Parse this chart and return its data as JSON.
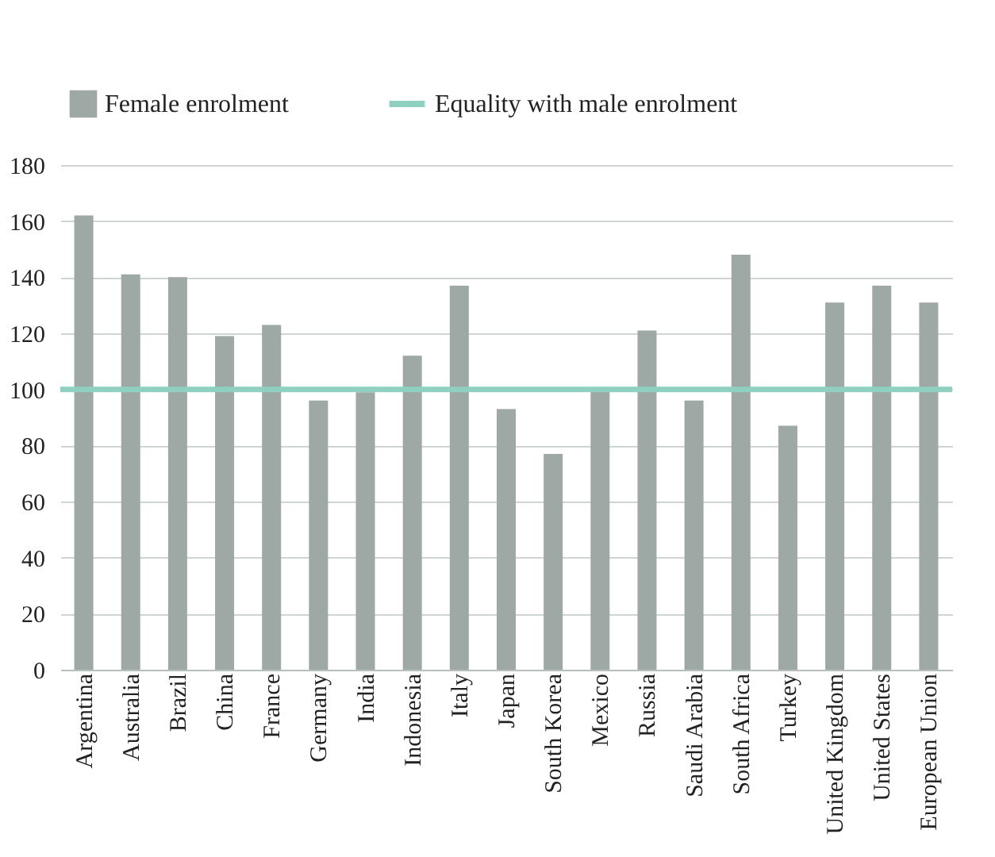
{
  "chart_data": {
    "type": "bar",
    "categories": [
      "Argentina",
      "Australia",
      "Brazil",
      "China",
      "France",
      "Germany",
      "India",
      "Indonesia",
      "Italy",
      "Japan",
      "South Korea",
      "Mexico",
      "Russia",
      "Saudi Arabia",
      "South Africa",
      "Turkey",
      "United Kingdom",
      "United States",
      "European Union"
    ],
    "series": [
      {
        "name": "Female enrolment",
        "color": "#9ea9a6",
        "values": [
          162,
          141,
          140,
          119,
          123,
          96,
          99,
          112,
          137,
          93,
          77,
          100,
          121,
          96,
          148,
          87,
          131,
          137,
          131
        ]
      }
    ],
    "ylim": [
      0,
      180
    ],
    "yticks": [
      0,
      20,
      40,
      60,
      80,
      100,
      120,
      140,
      160,
      180
    ],
    "grid": "y",
    "legend": "top left",
    "ref_lines": [
      {
        "axis": "y",
        "value": 100,
        "label": "Equality with male enrolment",
        "color": "#8fd0c0"
      }
    ]
  }
}
